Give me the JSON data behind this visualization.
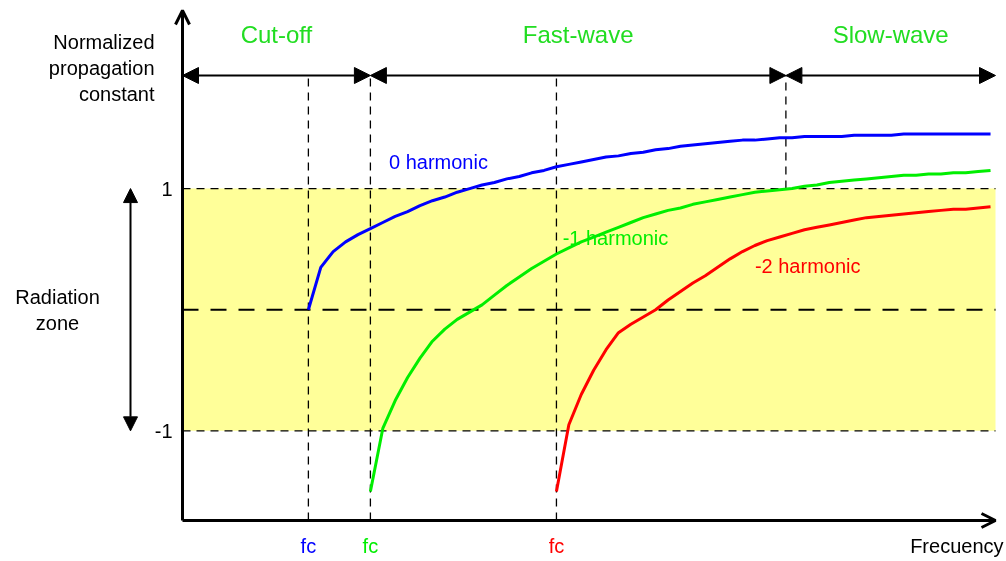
{
  "chart_data": {
    "type": "line",
    "xlabel": "Frecuency",
    "ylabel": "Normalized propagation constant",
    "categories": [
      null,
      null,
      null,
      null,
      null,
      null,
      null,
      null,
      null,
      null,
      "fc",
      null,
      null,
      null,
      null,
      "fc",
      null,
      null,
      null,
      null,
      null,
      null,
      null,
      null,
      null,
      null,
      null,
      null,
      null,
      null,
      "fc",
      null,
      null,
      null,
      null,
      null,
      null,
      null,
      null,
      null,
      null,
      null,
      null,
      null,
      null,
      null,
      null,
      null,
      null,
      null,
      null,
      null,
      null,
      null,
      null,
      null,
      null,
      null,
      null,
      null,
      null,
      null,
      null,
      null,
      null,
      null
    ],
    "ylim": [
      -1.74,
      2.47
    ],
    "yticks": [
      -1,
      1
    ],
    "grid": "x",
    "annotations": [
      "Cut-off",
      "Fast-wave",
      "Slow-wave",
      "Radiation zone"
    ],
    "line_style": "solid",
    "marker": "none",
    "series": [
      {
        "name": "0 harmonic",
        "color": "#0000ff",
        "values": [
          null,
          null,
          null,
          null,
          null,
          null,
          null,
          null,
          null,
          null,
          0,
          0.35,
          0.48,
          0.56,
          0.62,
          0.67,
          0.72,
          0.77,
          0.81,
          0.86,
          0.9,
          0.93,
          0.97,
          1.0,
          1.03,
          1.05,
          1.08,
          1.1,
          1.13,
          1.15,
          1.18,
          1.2,
          1.22,
          1.24,
          1.26,
          1.27,
          1.29,
          1.3,
          1.32,
          1.33,
          1.35,
          1.36,
          1.37,
          1.38,
          1.39,
          1.4,
          1.4,
          1.41,
          1.42,
          1.42,
          1.43,
          1.43,
          1.43,
          1.43,
          1.44,
          1.44,
          1.44,
          1.44,
          1.45,
          1.45,
          1.45,
          1.45,
          1.45,
          1.45,
          1.45,
          1.45
        ]
      },
      {
        "name": "-1 harmonic",
        "color": "#00ee00",
        "values": [
          null,
          null,
          null,
          null,
          null,
          null,
          null,
          null,
          null,
          null,
          null,
          null,
          null,
          null,
          null,
          -1.5,
          -0.98,
          -0.75,
          -0.56,
          -0.4,
          -0.26,
          -0.16,
          -0.08,
          -0.02,
          0.04,
          0.12,
          0.2,
          0.27,
          0.34,
          0.4,
          0.46,
          0.51,
          0.56,
          0.6,
          0.64,
          0.68,
          0.72,
          0.76,
          0.79,
          0.82,
          0.84,
          0.87,
          0.89,
          0.91,
          0.93,
          0.95,
          0.97,
          0.98,
          0.99,
          1.0,
          1.02,
          1.03,
          1.05,
          1.06,
          1.07,
          1.08,
          1.09,
          1.1,
          1.11,
          1.11,
          1.12,
          1.12,
          1.13,
          1.13,
          1.14,
          1.15
        ]
      },
      {
        "name": "-2 harmonic",
        "color": "#ff0000",
        "values": [
          null,
          null,
          null,
          null,
          null,
          null,
          null,
          null,
          null,
          null,
          null,
          null,
          null,
          null,
          null,
          null,
          null,
          null,
          null,
          null,
          null,
          null,
          null,
          null,
          null,
          null,
          null,
          null,
          null,
          null,
          -1.5,
          -0.95,
          -0.7,
          -0.5,
          -0.33,
          -0.19,
          -0.12,
          -0.06,
          0,
          0.08,
          0.15,
          0.22,
          0.28,
          0.35,
          0.42,
          0.48,
          0.53,
          0.57,
          0.6,
          0.63,
          0.66,
          0.68,
          0.7,
          0.72,
          0.74,
          0.76,
          0.77,
          0.78,
          0.79,
          0.8,
          0.81,
          0.82,
          0.83,
          0.83,
          0.84,
          0.85
        ]
      }
    ],
    "ref_lines": [
      {
        "axis": "y",
        "value": 1,
        "line_style": "dashed"
      },
      {
        "axis": "y",
        "value": 0,
        "line_style": "dashed"
      },
      {
        "axis": "y",
        "value": -1,
        "line_style": "dashed"
      }
    ],
    "bands": [
      {
        "axis": "y",
        "from": -1,
        "to": 1,
        "color": "#ffff99"
      }
    ]
  }
}
